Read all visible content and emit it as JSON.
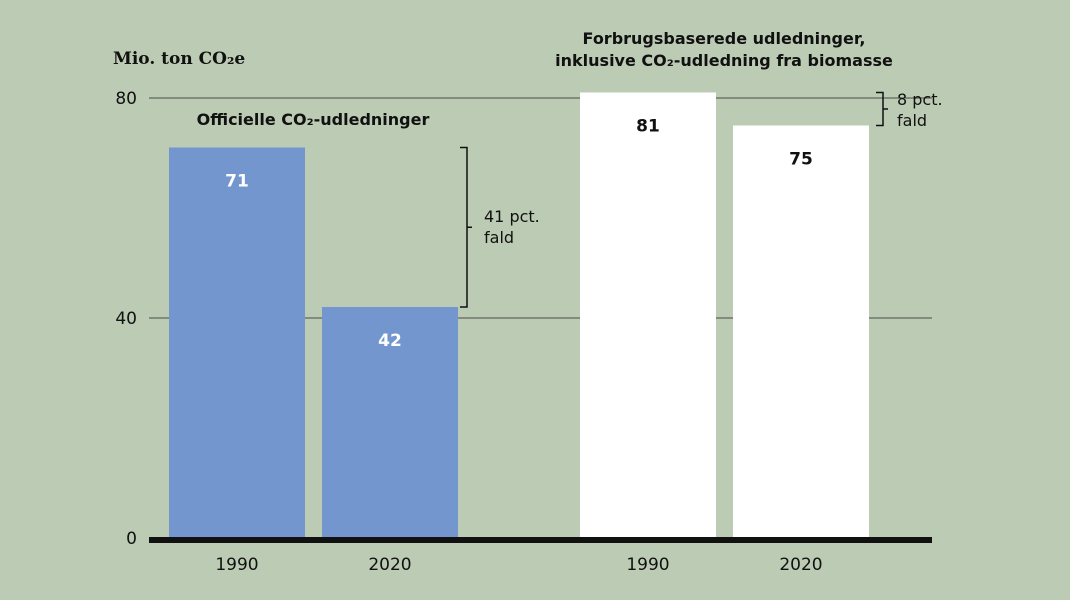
{
  "chart_data": {
    "type": "bar",
    "ylabel": "Mio. ton CO₂e",
    "ylim": [
      0,
      80
    ],
    "yticks": [
      0,
      40,
      80
    ],
    "grid": true,
    "groups": [
      {
        "title_lines": [
          "Officielle CO₂-udledninger"
        ],
        "categories": [
          "1990",
          "2020"
        ],
        "values": [
          71,
          42
        ],
        "value_labels": [
          "71",
          "42"
        ],
        "color": "#7496cf",
        "label_color": "#ffffff",
        "change_label": [
          "41 pct.",
          "fald"
        ]
      },
      {
        "title_lines": [
          "Forbrugsbaserede udledninger,",
          "inklusive CO₂-udledning fra biomasse"
        ],
        "categories": [
          "1990",
          "2020"
        ],
        "values": [
          81,
          75
        ],
        "value_labels": [
          "81",
          "75"
        ],
        "color": "#ffffff",
        "label_color": "#111111",
        "change_label": [
          "8 pct.",
          "fald"
        ]
      }
    ]
  }
}
